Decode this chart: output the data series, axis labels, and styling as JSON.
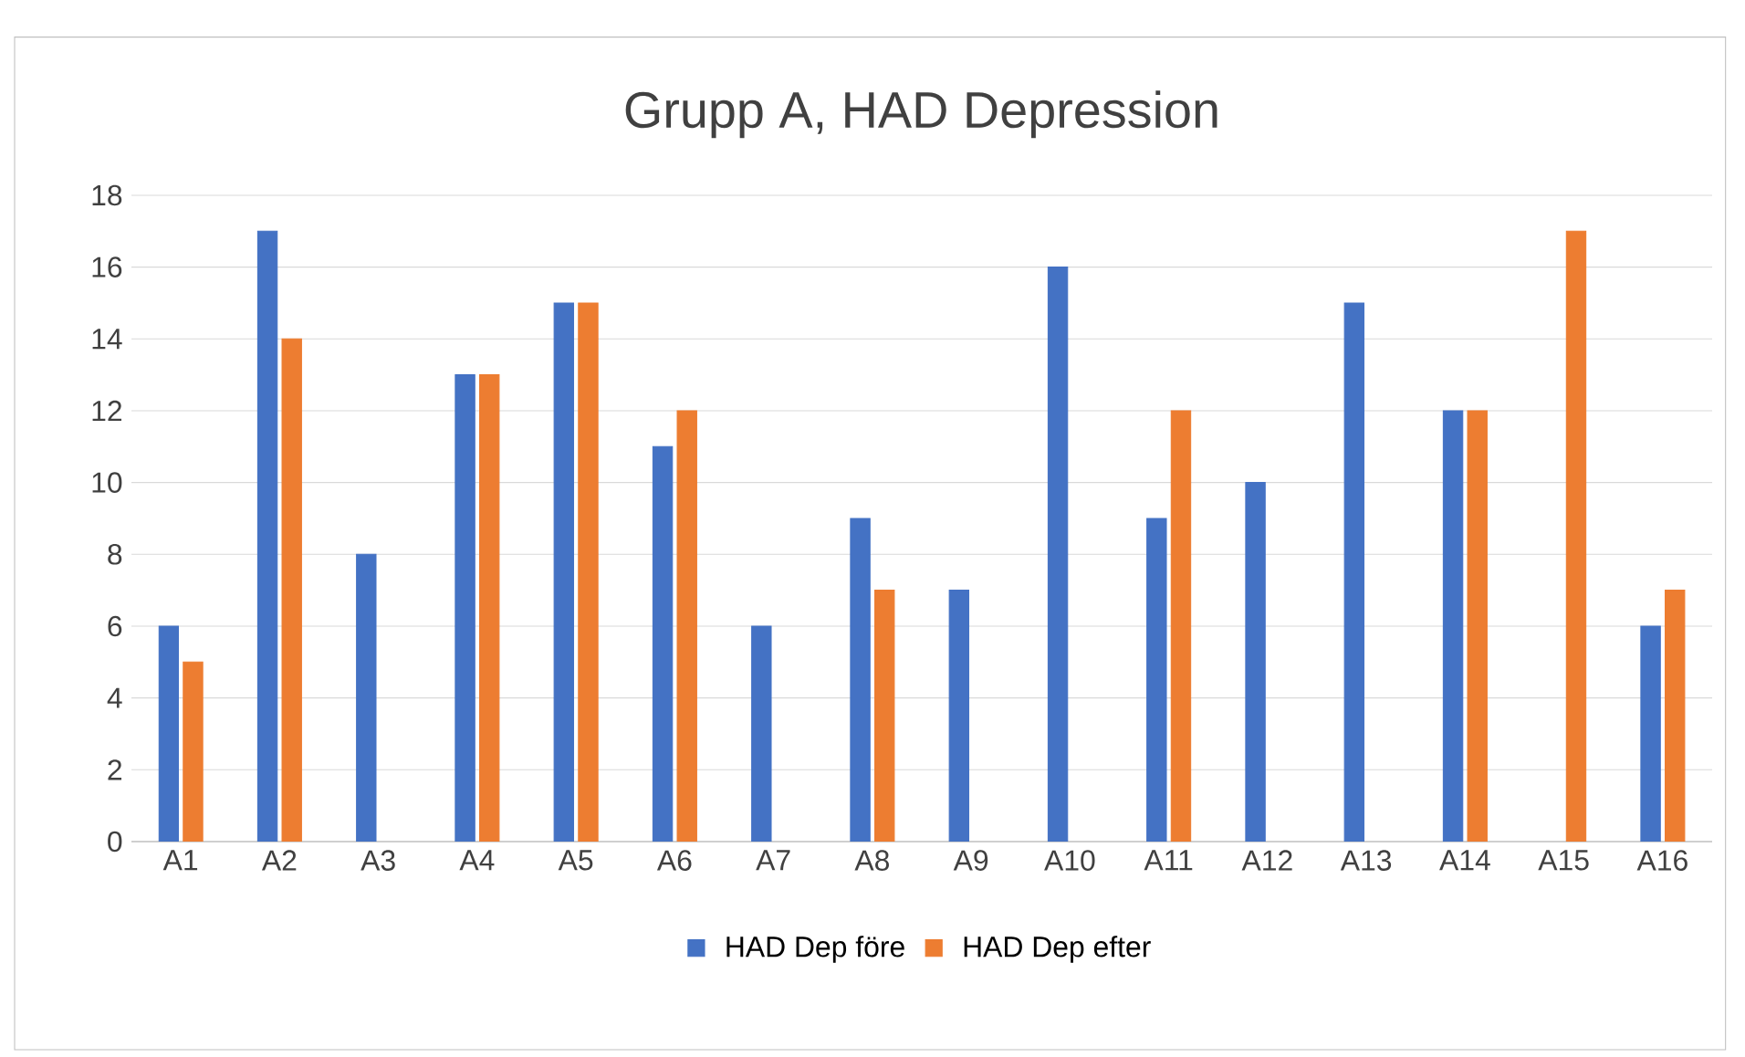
{
  "chart_data": {
    "type": "bar",
    "title": "Grupp A, HAD Depression",
    "categories": [
      "A1",
      "A2",
      "A3",
      "A4",
      "A5",
      "A6",
      "A7",
      "A8",
      "A9",
      "A10",
      "A11",
      "A12",
      "A13",
      "A14",
      "A15",
      "A16"
    ],
    "series": [
      {
        "name": "HAD Dep före",
        "color": "#4472c4",
        "values": [
          6,
          17,
          8,
          13,
          15,
          11,
          6,
          9,
          7,
          16,
          9,
          10,
          15,
          12,
          null,
          6
        ]
      },
      {
        "name": "HAD Dep efter",
        "color": "#ed7d31",
        "values": [
          5,
          14,
          null,
          13,
          15,
          12,
          null,
          7,
          null,
          null,
          12,
          null,
          null,
          12,
          17,
          7
        ]
      }
    ],
    "ylim": [
      0,
      18
    ],
    "yticks": [
      0,
      2,
      4,
      6,
      8,
      10,
      12,
      14,
      16,
      18
    ],
    "grid": "y",
    "legend": "bottom"
  }
}
